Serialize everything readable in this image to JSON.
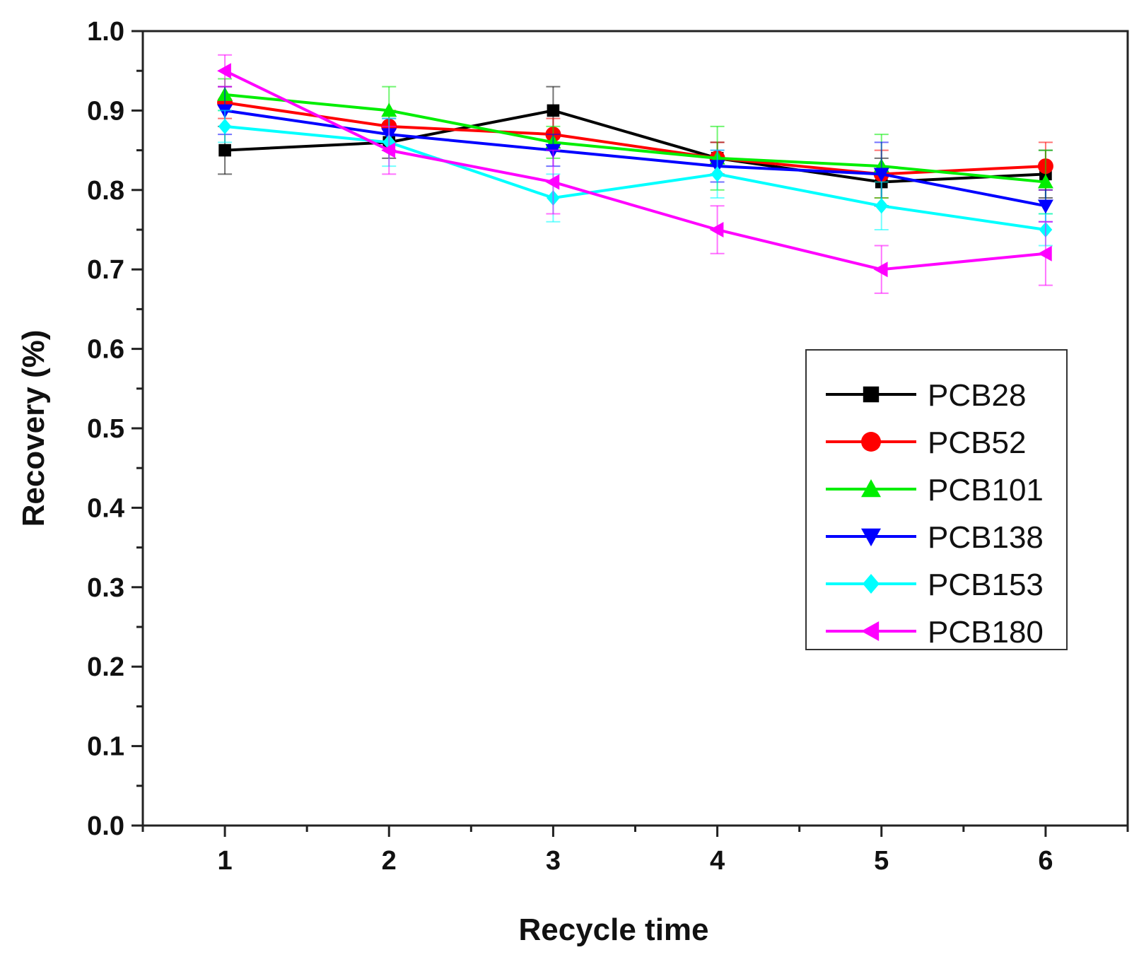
{
  "chart_data": {
    "type": "line",
    "title": "",
    "xlabel": "Recycle time",
    "ylabel": "Recovery (%)",
    "xlim": [
      0.5,
      6.5
    ],
    "ylim": [
      0.0,
      1.0
    ],
    "x": [
      1,
      2,
      3,
      4,
      5,
      6
    ],
    "x_ticks": [
      "1",
      "2",
      "3",
      "4",
      "5",
      "6"
    ],
    "y_ticks": [
      "0.0",
      "0.1",
      "0.2",
      "0.3",
      "0.4",
      "0.5",
      "0.6",
      "0.7",
      "0.8",
      "0.9",
      "1.0"
    ],
    "legend_position": "center-right",
    "grid": false,
    "series": [
      {
        "name": "PCB28",
        "color": "#000000",
        "marker": "square",
        "values": [
          0.85,
          0.86,
          0.9,
          0.84,
          0.81,
          0.82
        ],
        "errors": [
          0.03,
          0.02,
          0.03,
          0.02,
          0.03,
          0.03
        ]
      },
      {
        "name": "PCB52",
        "color": "#ff0000",
        "marker": "circle",
        "values": [
          0.91,
          0.88,
          0.87,
          0.84,
          0.82,
          0.83
        ],
        "errors": [
          0.02,
          0.02,
          0.02,
          0.02,
          0.03,
          0.03
        ]
      },
      {
        "name": "PCB101",
        "color": "#00ee00",
        "marker": "triangle-up",
        "values": [
          0.92,
          0.9,
          0.86,
          0.84,
          0.83,
          0.81
        ],
        "errors": [
          0.02,
          0.03,
          0.02,
          0.04,
          0.04,
          0.04
        ]
      },
      {
        "name": "PCB138",
        "color": "#0000ff",
        "marker": "triangle-down",
        "values": [
          0.9,
          0.87,
          0.85,
          0.83,
          0.82,
          0.78
        ],
        "errors": [
          0.03,
          0.02,
          0.02,
          0.02,
          0.04,
          0.02
        ]
      },
      {
        "name": "PCB153",
        "color": "#00ffff",
        "marker": "diamond",
        "values": [
          0.88,
          0.86,
          0.79,
          0.82,
          0.78,
          0.75
        ],
        "errors": [
          0.02,
          0.03,
          0.03,
          0.03,
          0.03,
          0.02
        ]
      },
      {
        "name": "PCB180",
        "color": "#ff00ff",
        "marker": "triangle-left",
        "values": [
          0.95,
          0.85,
          0.81,
          0.75,
          0.7,
          0.72
        ],
        "errors": [
          0.02,
          0.03,
          0.04,
          0.03,
          0.03,
          0.04
        ]
      }
    ]
  }
}
